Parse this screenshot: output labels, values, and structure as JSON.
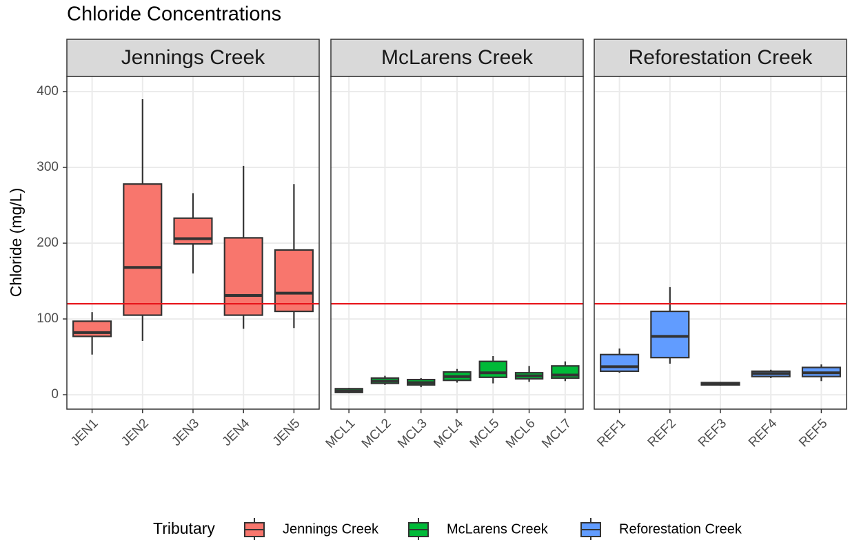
{
  "chart_data": {
    "type": "box",
    "title": "Chloride Concentrations",
    "y_label": "Chloride (mg/L)",
    "ylim": [
      -19,
      420
    ],
    "yticks": [
      0,
      100,
      200,
      300,
      400
    ],
    "grid": true,
    "hline": 120,
    "hline_color": "#e8151b",
    "legend_title": "Tributary",
    "legend_position": "bottom",
    "facets": [
      {
        "name": "Jennings Creek",
        "color": "#f8766d",
        "categories": [
          "JEN1",
          "JEN2",
          "JEN3",
          "JEN4",
          "JEN5"
        ],
        "boxes": [
          {
            "min": 53,
            "q1": 77,
            "median": 82,
            "q3": 97,
            "max": 109
          },
          {
            "min": 71,
            "q1": 105,
            "median": 168,
            "q3": 278,
            "max": 390
          },
          {
            "min": 160,
            "q1": 199,
            "median": 206,
            "q3": 233,
            "max": 266
          },
          {
            "min": 87,
            "q1": 105,
            "median": 131,
            "q3": 207,
            "max": 302
          },
          {
            "min": 88,
            "q1": 110,
            "median": 134,
            "q3": 191,
            "max": 278
          }
        ]
      },
      {
        "name": "McLarens Creek",
        "color": "#00ba38",
        "categories": [
          "MCL1",
          "MCL2",
          "MCL3",
          "MCL4",
          "MCL5",
          "MCL6",
          "MCL7"
        ],
        "boxes": [
          {
            "min": 2,
            "q1": 3,
            "median": 5,
            "q3": 8,
            "max": 9
          },
          {
            "min": 13,
            "q1": 15,
            "median": 18,
            "q3": 22,
            "max": 25
          },
          {
            "min": 10,
            "q1": 13,
            "median": 16,
            "q3": 20,
            "max": 22
          },
          {
            "min": 16,
            "q1": 19,
            "median": 24,
            "q3": 30,
            "max": 34
          },
          {
            "min": 15,
            "q1": 23,
            "median": 29,
            "q3": 44,
            "max": 51
          },
          {
            "min": 17,
            "q1": 21,
            "median": 25,
            "q3": 29,
            "max": 38
          },
          {
            "min": 18,
            "q1": 22,
            "median": 26,
            "q3": 38,
            "max": 44
          }
        ]
      },
      {
        "name": "Reforestation Creek",
        "color": "#619cff",
        "categories": [
          "REF1",
          "REF2",
          "REF3",
          "REF4",
          "REF5"
        ],
        "boxes": [
          {
            "min": 29,
            "q1": 31,
            "median": 37,
            "q3": 53,
            "max": 61
          },
          {
            "min": 41,
            "q1": 49,
            "median": 77,
            "q3": 110,
            "max": 142
          },
          {
            "min": 12,
            "q1": 13,
            "median": 15,
            "q3": 16,
            "max": 17
          },
          {
            "min": 22,
            "q1": 24,
            "median": 28,
            "q3": 31,
            "max": 33
          },
          {
            "min": 18,
            "q1": 24,
            "median": 29,
            "q3": 36,
            "max": 40
          }
        ]
      }
    ]
  }
}
